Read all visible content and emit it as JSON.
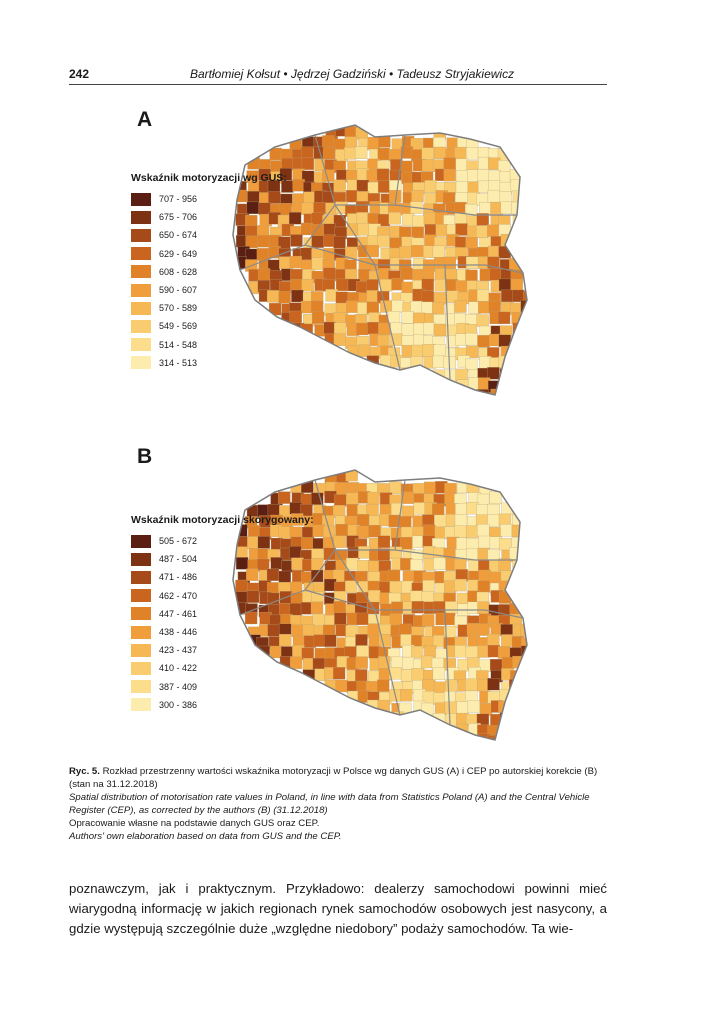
{
  "header": {
    "page_number": "242",
    "authors": "Bartłomiej Kołsut • Jędrzej Gadziński • Tadeusz Stryjakiewicz"
  },
  "panel_a": {
    "letter": "A",
    "legend_title": "Wskaźnik motoryzacji wg GUS:",
    "classes": [
      {
        "label": "707 - 956",
        "color": "#5a1f12"
      },
      {
        "label": "675 - 706",
        "color": "#7d3214"
      },
      {
        "label": "650 - 674",
        "color": "#a54a18"
      },
      {
        "label": "629 - 649",
        "color": "#c9651e"
      },
      {
        "label": "608 - 628",
        "color": "#e08328"
      },
      {
        "label": "590 - 607",
        "color": "#f09e3b"
      },
      {
        "label": "570 - 589",
        "color": "#f6b755"
      },
      {
        "label": "549 - 569",
        "color": "#f9cc6f"
      },
      {
        "label": "514 - 548",
        "color": "#fbdd8b"
      },
      {
        "label": "314 - 513",
        "color": "#fcecad"
      }
    ]
  },
  "panel_b": {
    "letter": "B",
    "legend_title": "Wskaźnik motoryzacji skorygowany:",
    "classes": [
      {
        "label": "505 - 672",
        "color": "#5a1f12"
      },
      {
        "label": "487 - 504",
        "color": "#7d3214"
      },
      {
        "label": "471 - 486",
        "color": "#a54a18"
      },
      {
        "label": "462 - 470",
        "color": "#c9651e"
      },
      {
        "label": "447 - 461",
        "color": "#e08328"
      },
      {
        "label": "438 - 446",
        "color": "#f09e3b"
      },
      {
        "label": "423 - 437",
        "color": "#f6b755"
      },
      {
        "label": "410 - 422",
        "color": "#f9cc6f"
      },
      {
        "label": "387 - 409",
        "color": "#fbdd8b"
      },
      {
        "label": "300 - 386",
        "color": "#fcecad"
      }
    ]
  },
  "caption": {
    "label": "Ryc. 5.",
    "polish": "Rozkład przestrzenny wartości wskaźnika motoryzacji w Polsce wg danych GUS (A) i CEP po autorskiej korekcie (B) (stan na 31.12.2018)",
    "english": "Spatial distribution of motorisation rate values in Poland, in line with data from Statistics Poland (A) and the Central Vehicle Register (CEP), as corrected by the authors (B) (31.12.2018)",
    "source_pl": "Opracowanie własne na podstawie danych GUS oraz CEP.",
    "source_en": "Authors' own elaboration based on data from GUS and the CEP."
  },
  "body_text": "poznawczym, jak i praktycznym. Przykładowo: dealerzy samochodowi powinni mieć wiarygodną informację w jakich regionach rynek samochodów osobowych jest nasycony, a gdzie występują szczególnie duże „względne niedobory” podaży samochodów. Ta wie-"
}
